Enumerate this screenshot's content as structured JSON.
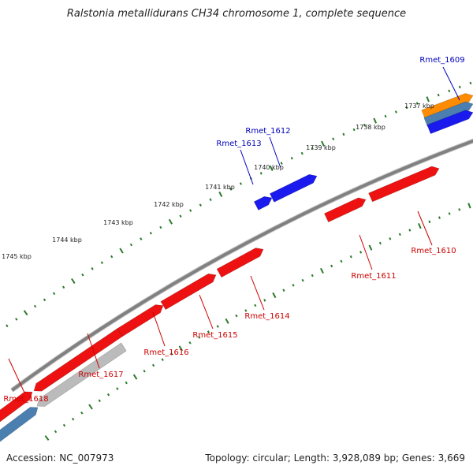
{
  "title": "Ralstonia metallidurans CH34 chromosome 1, complete sequence",
  "footer": {
    "accession": "Accession: NC_007973",
    "summary": "Topology: circular; Length: 3,928,089 bp; Genes: 3,669"
  },
  "scale_labels": [
    "1737 kbp",
    "1738 kbp",
    "1739 kbp",
    "1740 kbp",
    "1741 kbp",
    "1742 kbp",
    "1743 kbp",
    "1744 kbp",
    "1745 kbp"
  ],
  "genes": {
    "upper_strand": [
      "Rmet_1609",
      "Rmet_1612",
      "Rmet_1613"
    ],
    "lower_strand": [
      "Rmet_1610",
      "Rmet_1611",
      "Rmet_1614",
      "Rmet_1615",
      "Rmet_1616",
      "Rmet_1617",
      "Rmet_1618"
    ]
  },
  "colors": {
    "upper_label": "#0000bb",
    "lower_label": "#cc0000",
    "blue_feature": "#1a1aee",
    "red_feature": "#ee1111",
    "gray_feature": "#bbbbbb",
    "steel_feature": "#4a7fb0",
    "orange_feature": "#ff8c00",
    "backbone": "#808080",
    "scale_tick": "#2a7a2a"
  }
}
